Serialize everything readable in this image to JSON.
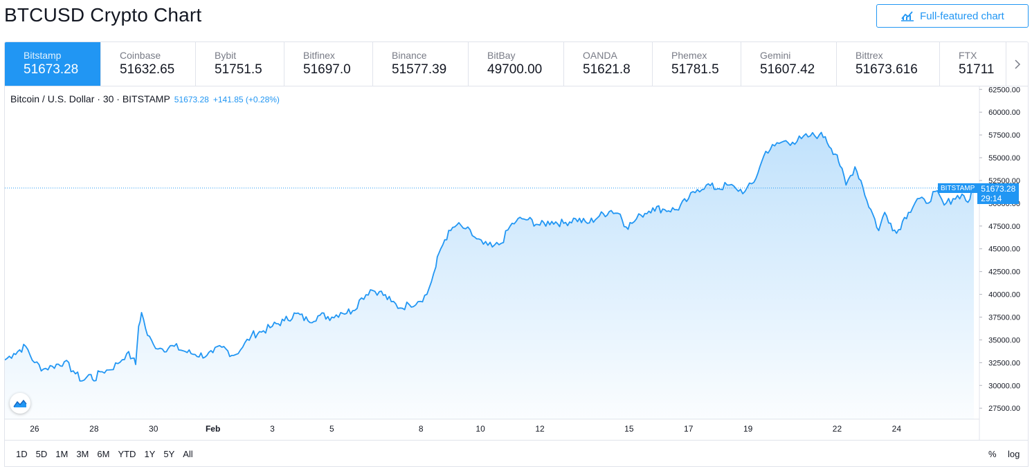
{
  "page": {
    "title": "BTCUSD Crypto Chart",
    "full_chart_label": "Full-featured chart",
    "accent_color": "#2196f3"
  },
  "exchanges": [
    {
      "name": "Bitstamp",
      "price": "51673.28",
      "active": true
    },
    {
      "name": "Coinbase",
      "price": "51632.65"
    },
    {
      "name": "Bybit",
      "price": "51751.5"
    },
    {
      "name": "Bitfinex",
      "price": "51697.0"
    },
    {
      "name": "Binance",
      "price": "51577.39"
    },
    {
      "name": "BitBay",
      "price": "49700.00"
    },
    {
      "name": "OANDA",
      "price": "51621.8"
    },
    {
      "name": "Phemex",
      "price": "51781.5"
    },
    {
      "name": "Gemini",
      "price": "51607.42"
    },
    {
      "name": "Bittrex",
      "price": "51673.616"
    },
    {
      "name": "FTX",
      "price": "51711"
    }
  ],
  "legend": {
    "symbol": "Bitcoin / U.S. Dollar · 30 · BITSTAMP",
    "last": "51673.28",
    "change": "+141.85 (+0.28%)"
  },
  "price_tag": {
    "exchange": "BITSTAMP",
    "price": "51673.28",
    "countdown": "29:14"
  },
  "ranges": [
    "1D",
    "5D",
    "1M",
    "3M",
    "6M",
    "YTD",
    "1Y",
    "5Y",
    "All"
  ],
  "scale_buttons": {
    "percent": "%",
    "log": "log"
  },
  "chart_data": {
    "type": "area",
    "title": "",
    "xlabel": "",
    "ylabel": "",
    "ylim": [
      26300,
      62900
    ],
    "y_ticks": [
      62500,
      60000,
      57500,
      55000,
      52500,
      50000,
      47500,
      45000,
      42500,
      40000,
      37500,
      35000,
      32500,
      30000,
      27500
    ],
    "y_tick_labels": [
      "62500.00",
      "60000.00",
      "57500.00",
      "55000.00",
      "52500.00",
      "50000.00",
      "47500.00",
      "45000.00",
      "42500.00",
      "40000.00",
      "37500.00",
      "35000.00",
      "32500.00",
      "30000.00",
      "27500.00"
    ],
    "x_ticks": [
      {
        "label": "26",
        "day": 26
      },
      {
        "label": "28",
        "day": 28
      },
      {
        "label": "30",
        "day": 30
      },
      {
        "label": "Feb",
        "day": 32
      },
      {
        "label": "3",
        "day": 34
      },
      {
        "label": "5",
        "day": 36
      },
      {
        "label": "8",
        "day": 39
      },
      {
        "label": "10",
        "day": 41
      },
      {
        "label": "12",
        "day": 43
      },
      {
        "label": "15",
        "day": 46
      },
      {
        "label": "17",
        "day": 48
      },
      {
        "label": "19",
        "day": 50
      },
      {
        "label": "22",
        "day": 53
      },
      {
        "label": "24",
        "day": 55
      }
    ],
    "last_value": 51673.28,
    "series": [
      {
        "x": [
          25.0,
          25.3,
          25.7,
          26.0,
          26.3,
          26.6,
          27.0,
          27.3,
          27.6,
          27.9,
          28.0,
          28.2,
          28.5,
          28.8,
          29.1,
          29.3,
          29.4,
          29.5,
          29.6,
          29.8,
          30.0,
          30.3,
          30.7,
          31.0,
          31.4,
          31.8,
          32.0,
          32.3,
          32.7,
          33.0,
          33.3,
          33.7,
          34.0,
          34.4,
          34.8,
          35.2,
          35.6,
          36.0,
          36.3,
          36.7,
          37.0,
          37.3,
          37.6,
          38.0,
          38.3,
          38.6,
          38.9,
          39.2,
          39.5,
          39.6,
          39.8,
          40.0,
          40.2,
          40.5,
          40.8,
          41.1,
          41.4,
          41.7,
          42.0,
          42.2,
          42.4,
          42.6,
          43.0,
          43.4,
          43.8,
          44.2,
          44.6,
          45.0,
          45.4,
          45.7,
          45.9,
          46.1,
          46.4,
          46.8,
          47.2,
          47.6,
          48.0,
          48.3,
          48.6,
          49.0,
          49.3,
          49.6,
          49.9,
          50.2,
          50.4,
          50.6,
          50.9,
          51.2,
          51.5,
          51.8,
          52.1,
          52.4,
          52.6,
          52.8,
          53.0,
          53.1,
          53.3,
          53.6,
          53.8,
          54.0,
          54.2,
          54.4,
          54.6,
          54.8,
          55.0,
          55.2,
          55.4,
          55.7,
          56.0,
          56.3,
          56.6,
          56.9,
          57.2,
          57.4,
          57.6
        ],
        "y": [
          32800,
          33500,
          34300,
          32500,
          31800,
          32100,
          32600,
          31600,
          30500,
          31200,
          30500,
          31500,
          31700,
          32400,
          33500,
          33000,
          32300,
          36500,
          38000,
          35500,
          34500,
          34000,
          34300,
          33800,
          33400,
          33300,
          33600,
          34200,
          33300,
          34200,
          35500,
          36000,
          36500,
          37100,
          37900,
          37100,
          37700,
          37500,
          38000,
          38200,
          39600,
          40500,
          40300,
          39200,
          38500,
          38900,
          39200,
          40000,
          43000,
          44500,
          46000,
          47000,
          47600,
          47200,
          46300,
          45500,
          45200,
          45600,
          47500,
          48000,
          48300,
          48200,
          47600,
          48000,
          47800,
          48300,
          47800,
          48600,
          49200,
          48800,
          47400,
          47800,
          48700,
          49500,
          49300,
          49300,
          50500,
          51500,
          52000,
          51600,
          52000,
          51600,
          51300,
          52300,
          54000,
          55700,
          56300,
          56800,
          56700,
          57100,
          57400,
          57500,
          57300,
          56000,
          55300,
          54100,
          52000,
          54000,
          52500,
          50300,
          48800,
          47000,
          49000,
          47800,
          46700,
          48000,
          49000,
          50500,
          50000,
          51300,
          49800,
          50500,
          51000,
          50100,
          51673
        ]
      }
    ]
  }
}
